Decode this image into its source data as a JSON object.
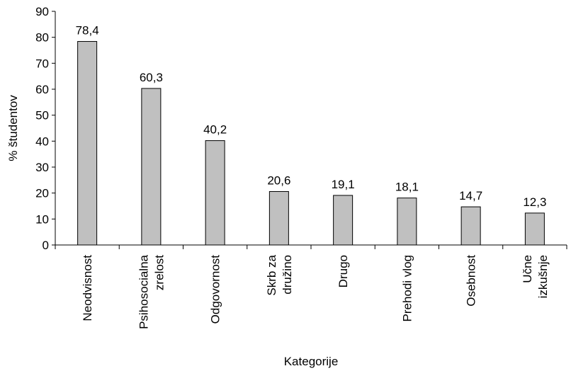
{
  "chart_data": {
    "type": "bar",
    "title": "",
    "xlabel": "Kategorije",
    "ylabel": "% študentov",
    "ylim": [
      0,
      90
    ],
    "yticks": [
      0,
      10,
      20,
      30,
      40,
      50,
      60,
      70,
      80,
      90
    ],
    "categories": [
      [
        "Neodvisnost"
      ],
      [
        "Psihosocialna",
        "zrelost"
      ],
      [
        "Odgovornost"
      ],
      [
        "Skrb za",
        "družino"
      ],
      [
        "Drugo"
      ],
      [
        "Prehodi vlog"
      ],
      [
        "Osebnost"
      ],
      [
        "Učne",
        "izkušnje"
      ]
    ],
    "values": [
      78.4,
      60.3,
      40.2,
      20.6,
      19.1,
      18.1,
      14.7,
      12.3
    ],
    "data_labels": [
      "78,4",
      "60,3",
      "40,2",
      "20,6",
      "19,1",
      "18,1",
      "14,7",
      "12,3"
    ],
    "grid": false,
    "legend": "none",
    "colors": {
      "bar_fill": "#c0c0c0",
      "bar_stroke": "#000000",
      "axis": "#000000"
    }
  }
}
